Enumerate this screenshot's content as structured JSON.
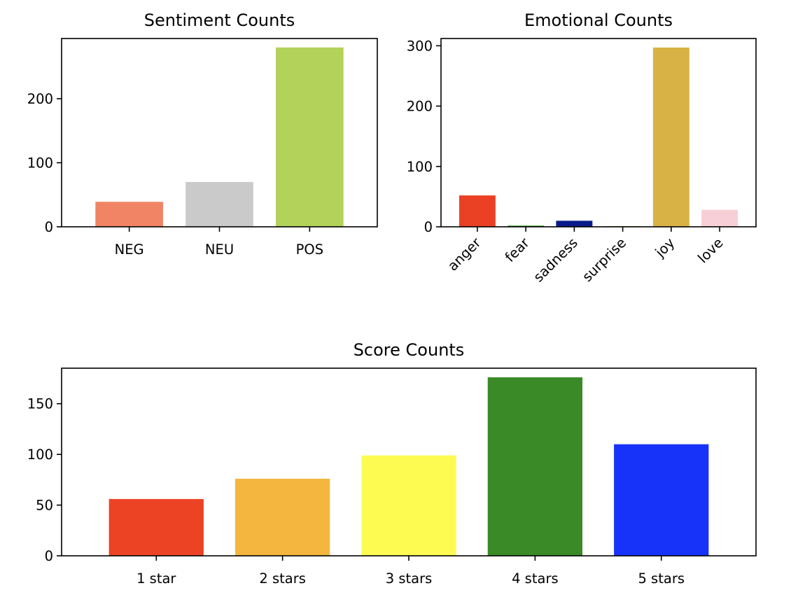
{
  "chart_data": [
    {
      "type": "bar",
      "title": "Sentiment Counts",
      "xlabel": "",
      "ylabel": "",
      "categories": [
        "NEG",
        "NEU",
        "POS"
      ],
      "values": [
        39,
        70,
        280
      ],
      "colors": [
        "#f08465",
        "#cacaca",
        "#b2d25a"
      ],
      "ylim": [
        0,
        294
      ],
      "yticks": [
        0,
        100,
        200
      ],
      "xtick_rotation": 0,
      "grid": false
    },
    {
      "type": "bar",
      "title": "Emotional Counts",
      "xlabel": "",
      "ylabel": "",
      "categories": [
        "anger",
        "fear",
        "sadness",
        "surprise",
        "joy",
        "love"
      ],
      "values": [
        52,
        2,
        10,
        1,
        297,
        28
      ],
      "colors": [
        "#ea4125",
        "#3f9a2e",
        "#091c8a",
        "#d7d22a",
        "#d9b245",
        "#f7cfd6"
      ],
      "ylim": [
        0,
        312
      ],
      "yticks": [
        0,
        100,
        200,
        300
      ],
      "xtick_rotation": -45,
      "grid": false
    },
    {
      "type": "bar",
      "title": "Score Counts",
      "xlabel": "",
      "ylabel": "",
      "categories": [
        "1 star",
        "2 stars",
        "3 stars",
        "4 stars",
        "5 stars"
      ],
      "values": [
        56,
        76,
        99,
        176,
        110
      ],
      "colors": [
        "#ec4325",
        "#f4b63f",
        "#fdfb51",
        "#3a8a28",
        "#1833f9"
      ],
      "ylim": [
        0,
        185
      ],
      "yticks": [
        0,
        50,
        100,
        150
      ],
      "xtick_rotation": 0,
      "grid": false
    }
  ]
}
